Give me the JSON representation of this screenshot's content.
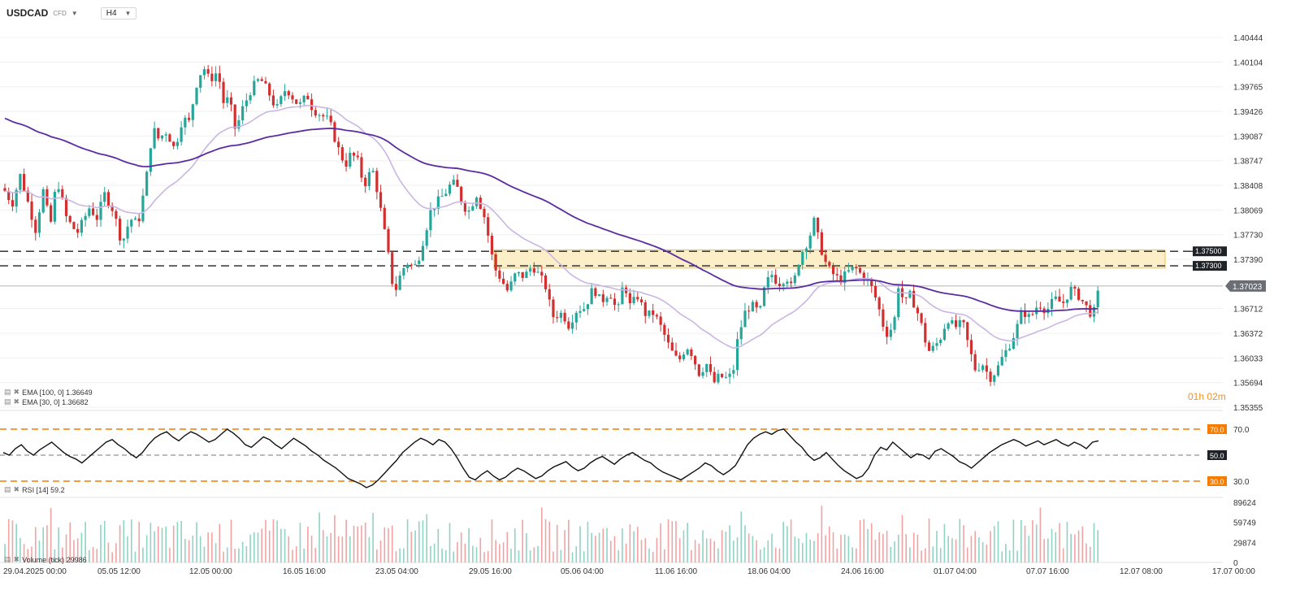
{
  "header": {
    "symbol": "USDCAD",
    "symbol_type": "CFD",
    "timeframe": "H4"
  },
  "indicators": {
    "ema100_label": "EMA [100, 0] 1.36649",
    "ema30_label": "EMA [30, 0] 1.36682",
    "rsi_label": "RSI [14] 59.2",
    "volume_label": "Volume (tick) 29986"
  },
  "countdown": {
    "hours": "01",
    "h": "h",
    "minutes": "02",
    "m": "m"
  },
  "colors": {
    "up": "#26a69a",
    "down": "#d32f2f",
    "ema100": "#5b2ca0",
    "ema30": "#c9b6e4",
    "zone_fill": "#fcefc7",
    "zone_border": "#f2c14e",
    "rsi_level": "#f57c00",
    "volume_up": "#8fd3c3",
    "volume_down": "#f1a3a3"
  },
  "chart_data": [
    {
      "type": "candlestick",
      "title": "USDCAD H4",
      "x_ticks": [
        "29.04.2025 00:00",
        "05.05 12:00",
        "12.05 00:00",
        "16.05 16:00",
        "23.05 04:00",
        "29.05 16:00",
        "05.06 04:00",
        "11.06 16:00",
        "18.06 04:00",
        "24.06 16:00",
        "01.07 04:00",
        "07.07 16:00",
        "12.07 08:00",
        "17.07 00:00"
      ],
      "y_ticks": [
        1.40444,
        1.40104,
        1.39765,
        1.39426,
        1.39087,
        1.38747,
        1.38408,
        1.38069,
        1.3773,
        1.3739,
        1.36712,
        1.36372,
        1.36033,
        1.35694,
        1.35355
      ],
      "ylim": [
        1.35355,
        1.40444
      ],
      "current_price": 1.37023,
      "key_levels": [
        {
          "label": "1.37500",
          "value": 1.375
        },
        {
          "label": "1.37300",
          "value": 1.373
        }
      ],
      "resistance_zone": {
        "low": 1.3727,
        "high": 1.3752
      },
      "close_path": [
        [
          0,
          1.3845
        ],
        [
          15,
          1.3815
        ],
        [
          25,
          1.3855
        ],
        [
          45,
          1.3775
        ],
        [
          52,
          1.384
        ],
        [
          62,
          1.3785
        ],
        [
          70,
          1.385
        ],
        [
          82,
          1.3795
        ],
        [
          95,
          1.3775
        ],
        [
          110,
          1.381
        ],
        [
          120,
          1.3795
        ],
        [
          128,
          1.383
        ],
        [
          140,
          1.3805
        ],
        [
          150,
          1.376
        ],
        [
          160,
          1.3795
        ],
        [
          170,
          1.3788
        ],
        [
          180,
          1.385
        ],
        [
          188,
          1.392
        ],
        [
          195,
          1.3905
        ],
        [
          205,
          1.3915
        ],
        [
          215,
          1.389
        ],
        [
          225,
          1.3935
        ],
        [
          232,
          1.3925
        ],
        [
          242,
          1.398
        ],
        [
          250,
          1.4005
        ],
        [
          258,
          1.3985
        ],
        [
          268,
          1.3998
        ],
        [
          275,
          1.3955
        ],
        [
          282,
          1.396
        ],
        [
          290,
          1.3915
        ],
        [
          298,
          1.3945
        ],
        [
          310,
          1.3975
        ],
        [
          320,
          1.3988
        ],
        [
          330,
          1.397
        ],
        [
          340,
          1.3945
        ],
        [
          352,
          1.3975
        ],
        [
          360,
          1.3962
        ],
        [
          368,
          1.395
        ],
        [
          378,
          1.3965
        ],
        [
          385,
          1.3945
        ],
        [
          395,
          1.3938
        ],
        [
          405,
          1.393
        ],
        [
          415,
          1.3895
        ],
        [
          425,
          1.3868
        ],
        [
          432,
          1.3885
        ],
        [
          440,
          1.3875
        ],
        [
          448,
          1.384
        ],
        [
          458,
          1.3865
        ],
        [
          465,
          1.383
        ],
        [
          475,
          1.3765
        ],
        [
          480,
          1.373
        ],
        [
          485,
          1.369
        ],
        [
          492,
          1.3715
        ],
        [
          500,
          1.3735
        ],
        [
          510,
          1.3728
        ],
        [
          515,
          1.374
        ],
        [
          522,
          1.377
        ],
        [
          530,
          1.3805
        ],
        [
          538,
          1.3818
        ],
        [
          548,
          1.383
        ],
        [
          556,
          1.3845
        ],
        [
          562,
          1.384
        ],
        [
          570,
          1.3812
        ],
        [
          578,
          1.3805
        ],
        [
          586,
          1.383
        ],
        [
          596,
          1.3798
        ],
        [
          602,
          1.3765
        ],
        [
          608,
          1.3728
        ],
        [
          615,
          1.3715
        ],
        [
          625,
          1.3695
        ],
        [
          635,
          1.372
        ],
        [
          645,
          1.3715
        ],
        [
          655,
          1.373
        ],
        [
          665,
          1.3715
        ],
        [
          672,
          1.37
        ],
        [
          680,
          1.366
        ],
        [
          692,
          1.3665
        ],
        [
          700,
          1.3648
        ],
        [
          710,
          1.367
        ],
        [
          720,
          1.3672
        ],
        [
          730,
          1.37
        ],
        [
          740,
          1.368
        ],
        [
          750,
          1.3695
        ],
        [
          760,
          1.3665
        ],
        [
          768,
          1.371
        ],
        [
          775,
          1.3675
        ],
        [
          785,
          1.3688
        ],
        [
          795,
          1.3662
        ],
        [
          805,
          1.3665
        ],
        [
          815,
          1.3642
        ],
        [
          825,
          1.3615
        ],
        [
          835,
          1.3598
        ],
        [
          845,
          1.362
        ],
        [
          852,
          1.3608
        ],
        [
          860,
          1.3582
        ],
        [
          870,
          1.3595
        ],
        [
          878,
          1.3568
        ],
        [
          885,
          1.3578
        ],
        [
          895,
          1.3575
        ],
        [
          902,
          1.3582
        ],
        [
          908,
          1.363
        ],
        [
          918,
          1.367
        ],
        [
          926,
          1.3675
        ],
        [
          935,
          1.3665
        ],
        [
          942,
          1.3705
        ],
        [
          950,
          1.3718
        ],
        [
          958,
          1.3705
        ],
        [
          968,
          1.3715
        ],
        [
          975,
          1.3698
        ],
        [
          985,
          1.3745
        ],
        [
          995,
          1.3765
        ],
        [
          1002,
          1.3792
        ],
        [
          1010,
          1.3755
        ],
        [
          1018,
          1.3728
        ],
        [
          1026,
          1.3718
        ],
        [
          1034,
          1.371
        ],
        [
          1042,
          1.372
        ],
        [
          1052,
          1.3728
        ],
        [
          1060,
          1.3718
        ],
        [
          1068,
          1.371
        ],
        [
          1075,
          1.3695
        ],
        [
          1082,
          1.367
        ],
        [
          1090,
          1.3635
        ],
        [
          1100,
          1.3648
        ],
        [
          1107,
          1.3715
        ],
        [
          1112,
          1.3675
        ],
        [
          1120,
          1.369
        ],
        [
          1128,
          1.367
        ],
        [
          1135,
          1.3645
        ],
        [
          1142,
          1.3612
        ],
        [
          1150,
          1.3618
        ],
        [
          1158,
          1.3632
        ],
        [
          1166,
          1.3658
        ],
        [
          1175,
          1.3645
        ],
        [
          1185,
          1.3652
        ],
        [
          1192,
          1.362
        ],
        [
          1200,
          1.3588
        ],
        [
          1210,
          1.3595
        ],
        [
          1218,
          1.3575
        ],
        [
          1226,
          1.3585
        ],
        [
          1234,
          1.3605
        ],
        [
          1242,
          1.362
        ],
        [
          1250,
          1.364
        ],
        [
          1258,
          1.3668
        ],
        [
          1268,
          1.3658
        ],
        [
          1278,
          1.3678
        ],
        [
          1288,
          1.3668
        ],
        [
          1298,
          1.3685
        ],
        [
          1308,
          1.3678
        ],
        [
          1318,
          1.3698
        ],
        [
          1328,
          1.3688
        ],
        [
          1338,
          1.3672
        ],
        [
          1345,
          1.366
        ],
        [
          1352,
          1.3695
        ]
      ]
    },
    {
      "type": "line",
      "title": "RSI [14] 59.2",
      "y_ticks": [
        70.0,
        30.0
      ],
      "levels": [
        {
          "label": "70.0",
          "value": 70
        },
        {
          "label": "50.0",
          "value": 50
        },
        {
          "label": "30.0",
          "value": 30
        }
      ],
      "last_value": 59.2,
      "ylim": [
        25,
        75
      ],
      "values": [
        52,
        50,
        55,
        58,
        53,
        50,
        54,
        57,
        60,
        56,
        52,
        49,
        47,
        44,
        48,
        52,
        56,
        60,
        62,
        58,
        55,
        51,
        48,
        52,
        58,
        63,
        66,
        68,
        64,
        61,
        65,
        68,
        66,
        63,
        60,
        62,
        66,
        70,
        67,
        63,
        58,
        56,
        60,
        64,
        62,
        58,
        55,
        59,
        63,
        60,
        57,
        53,
        50,
        46,
        43,
        40,
        36,
        32,
        30,
        28,
        25,
        27,
        31,
        36,
        41,
        46,
        52,
        56,
        60,
        63,
        61,
        58,
        62,
        60,
        55,
        48,
        40,
        33,
        31,
        35,
        38,
        34,
        31,
        33,
        37,
        40,
        38,
        35,
        32,
        34,
        38,
        41,
        43,
        45,
        41,
        38,
        40,
        44,
        47,
        49,
        46,
        43,
        47,
        50,
        52,
        49,
        46,
        44,
        40,
        37,
        35,
        33,
        31,
        34,
        37,
        40,
        44,
        42,
        38,
        35,
        38,
        42,
        50,
        58,
        63,
        66,
        68,
        66,
        69,
        70,
        65,
        60,
        56,
        50,
        46,
        48,
        52,
        47,
        42,
        38,
        35,
        32,
        34,
        40,
        50,
        56,
        54,
        60,
        56,
        52,
        48,
        51,
        50,
        47,
        53,
        55,
        52,
        49,
        45,
        43,
        40,
        44,
        48,
        52,
        55,
        58,
        60,
        62,
        60,
        57,
        59,
        61,
        58,
        60,
        62,
        59,
        57,
        60,
        58,
        55,
        60,
        61
      ]
    },
    {
      "type": "bar",
      "title": "Volume (tick) 29986",
      "y_ticks": [
        89624,
        59749,
        29874,
        0
      ],
      "ylim": [
        0,
        89624
      ],
      "last_value": 29986
    }
  ]
}
